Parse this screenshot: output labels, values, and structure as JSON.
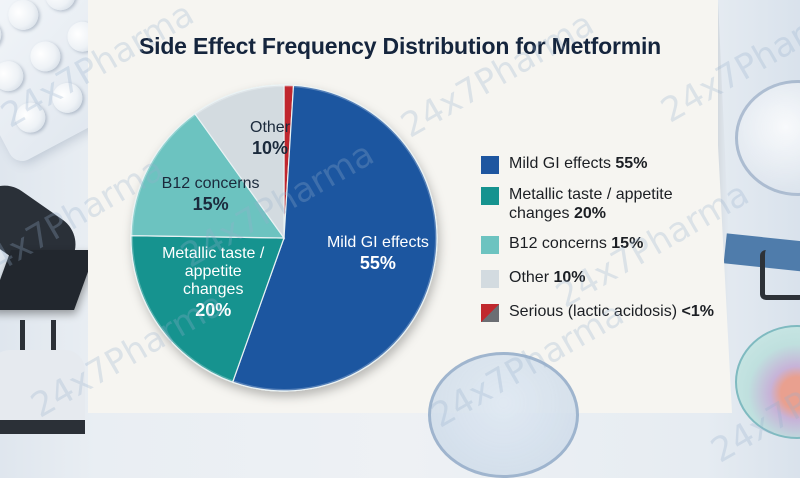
{
  "chart_data": {
    "type": "pie",
    "title": "Side Effect Frequency Distribution for Metformin",
    "start_angle_deg": 0,
    "direction": "clockwise",
    "slices": [
      {
        "label": "Serious (lactic acidosis)",
        "value": 1,
        "display": "<1%",
        "color": "#c0282d",
        "legend_color2": "#6b6e73",
        "in_pie_label": false
      },
      {
        "label": "Mild GI effects",
        "value": 55,
        "display": "55%",
        "color": "#1e56a0",
        "in_pie_label": true,
        "label_lines": [
          "Mild GI effects"
        ],
        "label_style": "light"
      },
      {
        "label": "Metallic taste / appetite changes",
        "value": 20,
        "display": "20%",
        "color": "#16938f",
        "in_pie_label": true,
        "label_lines": [
          "Metallic taste /",
          "appetite",
          "changes"
        ],
        "label_style": "light"
      },
      {
        "label": "B12 concerns",
        "value": 15,
        "display": "15%",
        "color": "#6cc3c0",
        "in_pie_label": true,
        "label_lines": [
          "B12 concerns"
        ],
        "label_style": "dark"
      },
      {
        "label": "Other",
        "value": 10,
        "display": "10%",
        "color": "#d3dbe0",
        "in_pie_label": true,
        "label_lines": [
          "Other"
        ],
        "label_style": "dark"
      }
    ],
    "legend": {
      "placement": "right",
      "entries": [
        {
          "text": "Mild GI effects",
          "value": "55%",
          "color": "#1e56a0"
        },
        {
          "text": "Metallic taste / appetite changes",
          "value": "20%",
          "color": "#16938f"
        },
        {
          "text": "B12 concerns",
          "value": "15%",
          "color": "#6cc3c0"
        },
        {
          "text": "Other",
          "value": "10%",
          "color": "#d3dbe0"
        },
        {
          "text": "Serious (lactic acidosis)",
          "value": "<1%",
          "color": "#c0282d",
          "color2": "#6b6e73"
        }
      ]
    }
  },
  "watermark": "24x7Pharma",
  "colors": {
    "title": "#15253d",
    "paper": "#f6f5f1"
  }
}
